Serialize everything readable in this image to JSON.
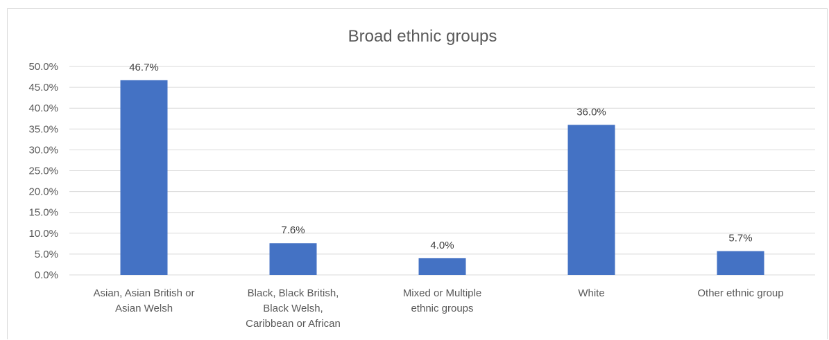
{
  "chart_data": {
    "type": "bar",
    "title": "Broad ethnic groups",
    "xlabel": "",
    "ylabel": "",
    "categories": [
      [
        "Asian, Asian British or",
        "Asian Welsh"
      ],
      [
        "Black, Black British,",
        "Black Welsh,",
        "Caribbean or African"
      ],
      [
        "Mixed or Multiple",
        "ethnic groups"
      ],
      [
        "White"
      ],
      [
        "Other ethnic group"
      ]
    ],
    "values": [
      46.7,
      7.6,
      4.0,
      36.0,
      5.7
    ],
    "data_labels": [
      "46.7%",
      "7.6%",
      "4.0%",
      "36.0%",
      "5.7%"
    ],
    "y_ticks": [
      "0.0%",
      "5.0%",
      "10.0%",
      "15.0%",
      "20.0%",
      "25.0%",
      "30.0%",
      "35.0%",
      "40.0%",
      "45.0%",
      "50.0%"
    ],
    "ylim": [
      0,
      50
    ],
    "grid": true,
    "legend": "none",
    "colors": {
      "bar": "#4472c4",
      "grid": "#d9d9d9",
      "text": "#595959"
    }
  }
}
